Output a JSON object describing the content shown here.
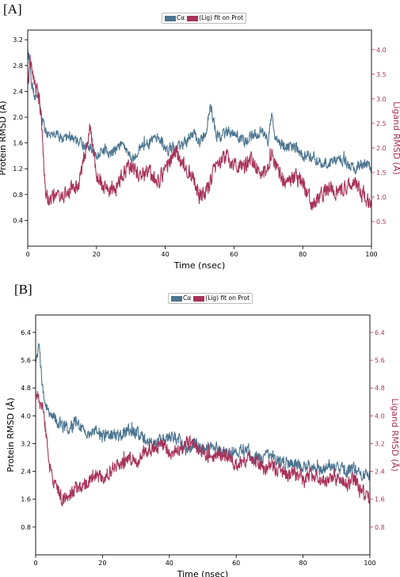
{
  "chart_data": [
    {
      "panel_label": "[A]",
      "type": "line",
      "xlabel": "Time (nsec)",
      "ylabel_left": "Protein RMSD (Å)",
      "ylabel_right": "Ligand RMSD (Å)",
      "xlim": [
        0,
        100
      ],
      "ylim_left": [
        0.0,
        3.35
      ],
      "ylim_right": [
        0.0,
        4.4
      ],
      "x_ticks": [
        "0",
        "20",
        "40",
        "60",
        "80",
        "100"
      ],
      "y_ticks_left": [
        "0.4",
        "0.8",
        "1.2",
        "1.6",
        "2.0",
        "2.4",
        "2.8",
        "3.2"
      ],
      "y_ticks_right": [
        "0.5",
        "1.0",
        "1.5",
        "2.0",
        "2.5",
        "3.0",
        "3.5",
        "4.0"
      ],
      "legend": {
        "series1": "Cα",
        "series2": "(Lig) fit on Prot",
        "placement": "top-center"
      },
      "series": [
        {
          "name": "Cα",
          "axis": "left",
          "color": "#4c7590",
          "x": [
            0,
            1,
            2,
            3,
            4,
            5,
            6,
            8,
            10,
            12,
            15,
            18,
            20,
            22,
            25,
            28,
            30,
            33,
            35,
            38,
            40,
            43,
            45,
            48,
            50,
            52,
            53,
            55,
            58,
            60,
            63,
            65,
            68,
            70,
            71,
            72,
            75,
            78,
            80,
            83,
            85,
            88,
            90,
            93,
            95,
            98,
            100
          ],
          "values": [
            3.1,
            2.6,
            2.3,
            2.4,
            2.0,
            1.8,
            1.7,
            1.75,
            1.65,
            1.7,
            1.6,
            1.55,
            1.4,
            1.5,
            1.45,
            1.6,
            1.35,
            1.55,
            1.6,
            1.7,
            1.5,
            1.5,
            1.55,
            1.75,
            1.6,
            1.8,
            2.2,
            1.7,
            1.75,
            1.8,
            1.6,
            1.7,
            1.8,
            1.6,
            2.1,
            1.7,
            1.5,
            1.55,
            1.4,
            1.4,
            1.3,
            1.3,
            1.35,
            1.3,
            1.2,
            1.3,
            1.2
          ]
        },
        {
          "name": "(Lig) fit on Prot",
          "axis": "right",
          "color": "#a8325a",
          "x": [
            0,
            1,
            2,
            3,
            4,
            5,
            6,
            8,
            10,
            12,
            15,
            18,
            20,
            22,
            25,
            28,
            30,
            33,
            35,
            38,
            40,
            43,
            45,
            48,
            50,
            52,
            53,
            55,
            58,
            60,
            63,
            65,
            68,
            70,
            71,
            72,
            75,
            78,
            80,
            83,
            85,
            88,
            90,
            93,
            95,
            98,
            100
          ],
          "values": [
            3.4,
            3.6,
            3.3,
            3.1,
            2.6,
            1.2,
            0.9,
            1.1,
            1.0,
            1.1,
            1.3,
            2.4,
            1.5,
            1.2,
            1.1,
            1.5,
            1.6,
            1.4,
            1.5,
            1.3,
            1.6,
            1.9,
            1.7,
            1.4,
            1.0,
            1.1,
            1.3,
            1.7,
            1.8,
            1.7,
            1.6,
            1.8,
            1.4,
            1.6,
            1.9,
            1.7,
            1.2,
            1.4,
            1.3,
            0.8,
            1.0,
            1.2,
            1.1,
            1.2,
            1.3,
            1.0,
            0.9
          ]
        }
      ]
    },
    {
      "panel_label": "[B]",
      "type": "line",
      "xlabel": "Time (nsec)",
      "ylabel_left": "Protein RMSD (Å)",
      "ylabel_right": "Ligand RMSD (Å)",
      "xlim": [
        0,
        100
      ],
      "ylim_left": [
        0.0,
        6.9
      ],
      "ylim_right": [
        0.0,
        6.9
      ],
      "x_ticks": [
        "0",
        "20",
        "40",
        "60",
        "80",
        "100"
      ],
      "y_ticks_left": [
        "0.8",
        "1.6",
        "2.4",
        "3.2",
        "4.0",
        "4.8",
        "5.6",
        "6.4"
      ],
      "y_ticks_right": [
        "0.8",
        "1.6",
        "2.4",
        "3.2",
        "4.0",
        "4.8",
        "5.6",
        "6.4"
      ],
      "legend": {
        "series1": "Cα",
        "series2": "(Lig) fit on Prot",
        "placement": "top-center"
      },
      "series": [
        {
          "name": "Cα",
          "axis": "left",
          "color": "#4c7590",
          "x": [
            0,
            1,
            2,
            3,
            4,
            5,
            6,
            8,
            10,
            12,
            15,
            18,
            20,
            22,
            25,
            28,
            30,
            33,
            35,
            38,
            40,
            43,
            45,
            48,
            50,
            53,
            55,
            58,
            60,
            63,
            65,
            68,
            70,
            73,
            75,
            78,
            80,
            83,
            85,
            88,
            90,
            93,
            95,
            98,
            100
          ],
          "values": [
            5.6,
            6.0,
            4.8,
            4.4,
            4.0,
            4.0,
            3.9,
            3.7,
            3.6,
            3.8,
            3.5,
            3.6,
            3.4,
            3.5,
            3.4,
            3.6,
            3.5,
            3.3,
            3.2,
            3.3,
            3.4,
            3.3,
            3.0,
            3.2,
            3.0,
            3.1,
            3.0,
            2.9,
            3.0,
            3.0,
            2.8,
            2.8,
            2.9,
            2.7,
            2.6,
            2.6,
            2.5,
            2.6,
            2.4,
            2.6,
            2.5,
            2.4,
            2.5,
            2.3,
            2.3
          ]
        },
        {
          "name": "(Lig) fit on Prot",
          "axis": "right",
          "color": "#a8325a",
          "x": [
            0,
            1,
            2,
            3,
            4,
            5,
            6,
            8,
            10,
            12,
            15,
            18,
            20,
            22,
            25,
            28,
            30,
            33,
            35,
            38,
            40,
            43,
            45,
            48,
            50,
            53,
            55,
            58,
            60,
            63,
            65,
            68,
            70,
            73,
            75,
            78,
            80,
            83,
            85,
            88,
            90,
            93,
            95,
            98,
            100
          ],
          "values": [
            4.8,
            4.4,
            4.2,
            3.6,
            2.6,
            2.2,
            2.0,
            1.6,
            1.7,
            1.9,
            2.0,
            2.3,
            2.2,
            2.4,
            2.6,
            2.8,
            2.7,
            3.0,
            3.0,
            3.2,
            2.9,
            3.0,
            3.3,
            3.1,
            3.0,
            2.8,
            2.9,
            2.8,
            2.6,
            2.7,
            2.8,
            2.5,
            2.6,
            2.4,
            2.3,
            2.3,
            2.2,
            2.3,
            2.1,
            2.2,
            2.2,
            2.0,
            2.2,
            1.8,
            1.6
          ]
        }
      ]
    }
  ]
}
